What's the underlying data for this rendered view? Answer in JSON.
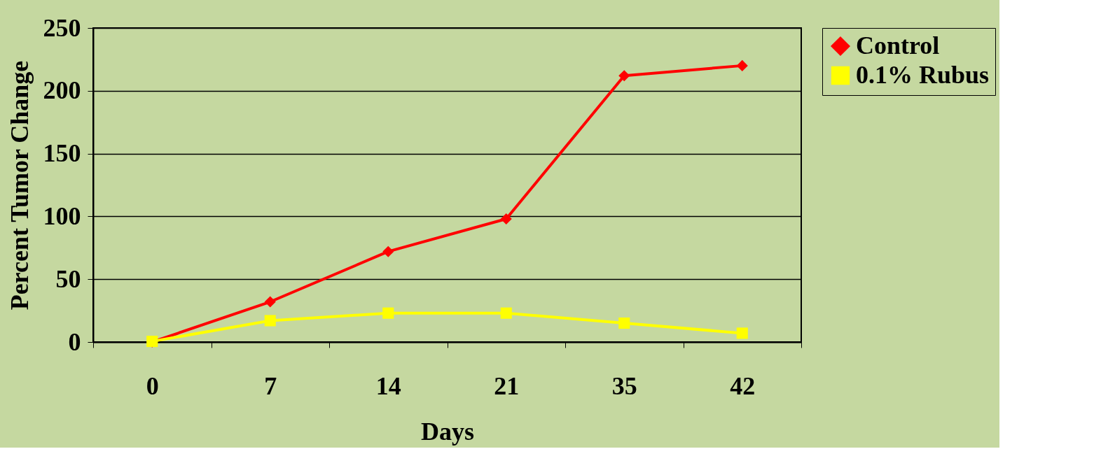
{
  "chart_data": {
    "type": "line",
    "xlabel": "Days",
    "ylabel": "Percent Tumor Change",
    "categories": [
      "0",
      "7",
      "14",
      "21",
      "35",
      "42"
    ],
    "series": [
      {
        "name": "Control",
        "color": "#ff0000",
        "marker": "diamond",
        "values": [
          0,
          32,
          72,
          98,
          212,
          220
        ]
      },
      {
        "name": "0.1% Rubus",
        "color": "#ffff00",
        "marker": "square",
        "values": [
          0.5,
          17,
          23,
          23,
          15,
          7
        ]
      }
    ],
    "ylim": [
      0,
      250
    ],
    "yticks": [
      0,
      50,
      100,
      150,
      200,
      250
    ],
    "grid": "y",
    "legend": "right",
    "line_style": "solid"
  }
}
